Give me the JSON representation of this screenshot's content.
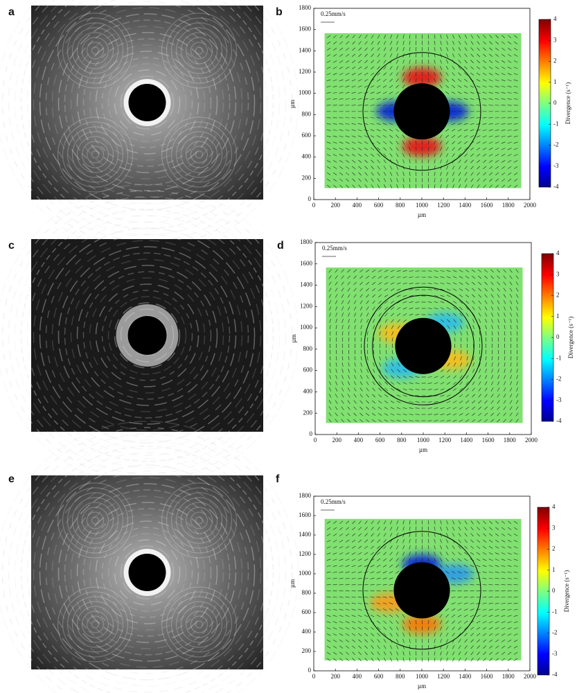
{
  "panels": [
    {
      "label": "a"
    },
    {
      "label": "b",
      "scale_label": "0.25mm/s",
      "xlabel": "µm",
      "ylabel": "µm",
      "xticks": [
        0,
        200,
        400,
        600,
        800,
        1000,
        1200,
        1400,
        1600,
        1800,
        2000
      ],
      "yticks": [
        0,
        200,
        400,
        600,
        800,
        1000,
        1200,
        1400,
        1600,
        1800
      ],
      "colorbar_label": "Divergence (s⁻¹)",
      "colorbar_ticks": [
        4,
        3,
        2,
        1,
        0,
        -1,
        -2,
        -3,
        -4
      ]
    },
    {
      "label": "c"
    },
    {
      "label": "d",
      "scale_label": "0.25mm/s",
      "xlabel": "µm",
      "ylabel": "µm",
      "xticks": [
        0,
        200,
        400,
        600,
        800,
        1000,
        1200,
        1400,
        1600,
        1800,
        2000
      ],
      "yticks": [
        0,
        200,
        400,
        600,
        800,
        1000,
        1200,
        1400,
        1600,
        1800
      ],
      "colorbar_label": "Divergence (s⁻¹)",
      "colorbar_ticks": [
        4,
        3,
        2,
        1,
        0,
        -1,
        -2,
        -3,
        -4
      ]
    },
    {
      "label": "e"
    },
    {
      "label": "f",
      "scale_label": "0.25mm/s",
      "xlabel": "µm",
      "ylabel": "µm",
      "xticks": [
        0,
        200,
        400,
        600,
        800,
        1000,
        1200,
        1400,
        1600,
        1800,
        2000
      ],
      "yticks": [
        0,
        200,
        400,
        600,
        800,
        1000,
        1200,
        1400,
        1600,
        1800
      ],
      "colorbar_label": "Divergence (s⁻¹)",
      "colorbar_ticks": [
        4,
        3,
        2,
        1,
        0,
        -1,
        -2,
        -3,
        -4
      ]
    }
  ]
}
